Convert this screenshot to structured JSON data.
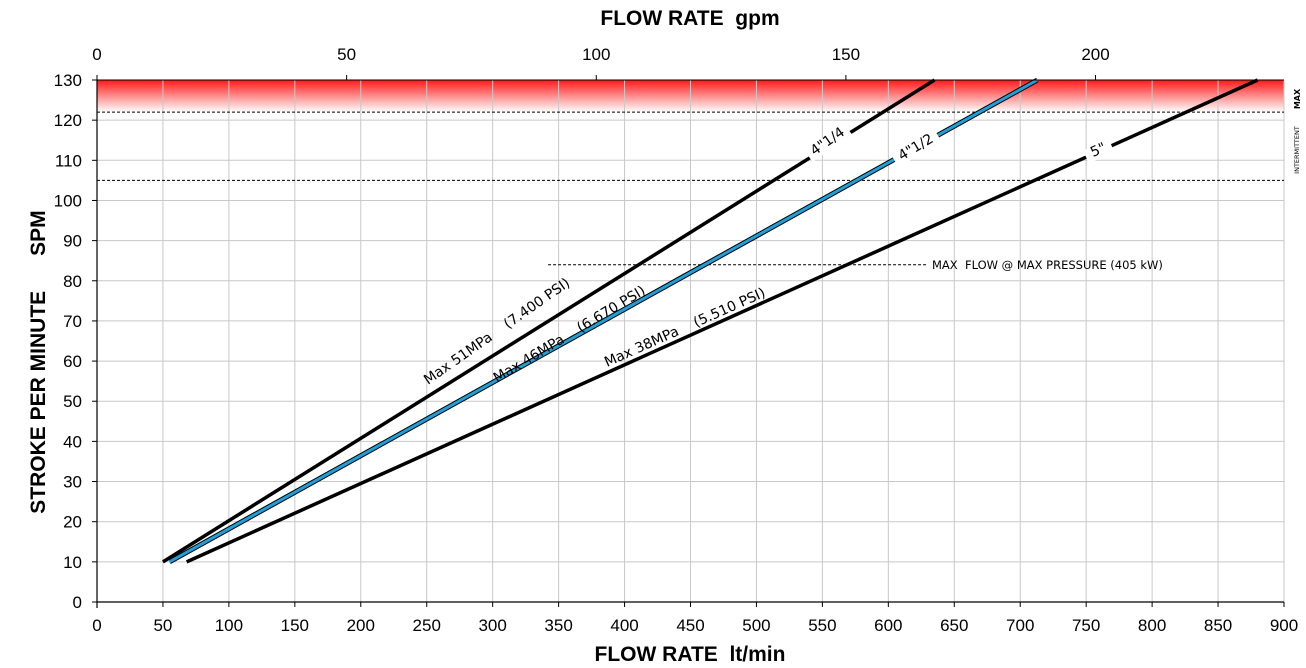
{
  "chart_data": {
    "type": "line",
    "x_bottom": {
      "title": "FLOW RATE  lt/min",
      "range": [
        0,
        900
      ],
      "ticks": [
        0,
        50,
        100,
        150,
        200,
        250,
        300,
        350,
        400,
        450,
        500,
        550,
        600,
        650,
        700,
        750,
        800,
        850,
        900
      ]
    },
    "x_top": {
      "title": "FLOW RATE  gpm",
      "range": [
        0,
        237.75
      ],
      "ticks": [
        0,
        50,
        100,
        150,
        200
      ]
    },
    "y": {
      "title": "STROKE PER MINUTE      SPM",
      "range": [
        0,
        130
      ],
      "ticks": [
        0,
        10,
        20,
        30,
        40,
        50,
        60,
        70,
        80,
        90,
        100,
        110,
        120,
        130
      ]
    },
    "grid": true,
    "series": [
      {
        "name": "4\"1/4",
        "pressure_label": "Max 51MPa    (7.400 PSI)",
        "color": "#000000",
        "points": [
          [
            50,
            10
          ],
          [
            635,
            130
          ]
        ]
      },
      {
        "name": "4\"1/2",
        "pressure_label": "Max 46MPa    (6.670 PSI)",
        "color": "#1e9fd8",
        "points": [
          [
            55,
            10
          ],
          [
            713,
            130
          ]
        ]
      },
      {
        "name": "5\"",
        "pressure_label": "Max 38MPa    (5.510 PSI)",
        "color": "#000000",
        "points": [
          [
            68,
            10
          ],
          [
            880,
            130
          ]
        ]
      }
    ],
    "reference_lines": [
      {
        "y": 122
      },
      {
        "y": 105
      },
      {
        "y": 84,
        "x_start": 342,
        "x_end": 630,
        "label": "MAX  FLOW @ MAX PRESSURE (405 kW)"
      }
    ],
    "shaded_band": {
      "y_from": 122,
      "y_to": 130,
      "color_top": "#ff1a1a",
      "color_bottom": "#ffffff"
    },
    "side_labels": {
      "intermittent": "INTERMITTENT",
      "max": "MAX"
    }
  }
}
